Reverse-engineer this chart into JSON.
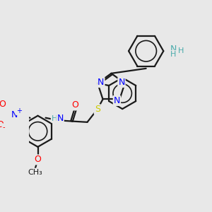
{
  "background_color": "#e8e8e8",
  "atom_colors": {
    "N": "#0000ff",
    "O": "#ff0000",
    "S": "#cccc00",
    "H_teal": "#4aabab",
    "C": "#1a1a1a",
    "default": "#1a1a1a"
  },
  "bond_color": "#1a1a1a",
  "bond_width": 1.6,
  "fig_w": 3.0,
  "fig_h": 3.0,
  "dpi": 100,
  "xlim": [
    0,
    10
  ],
  "ylim": [
    0,
    10
  ]
}
